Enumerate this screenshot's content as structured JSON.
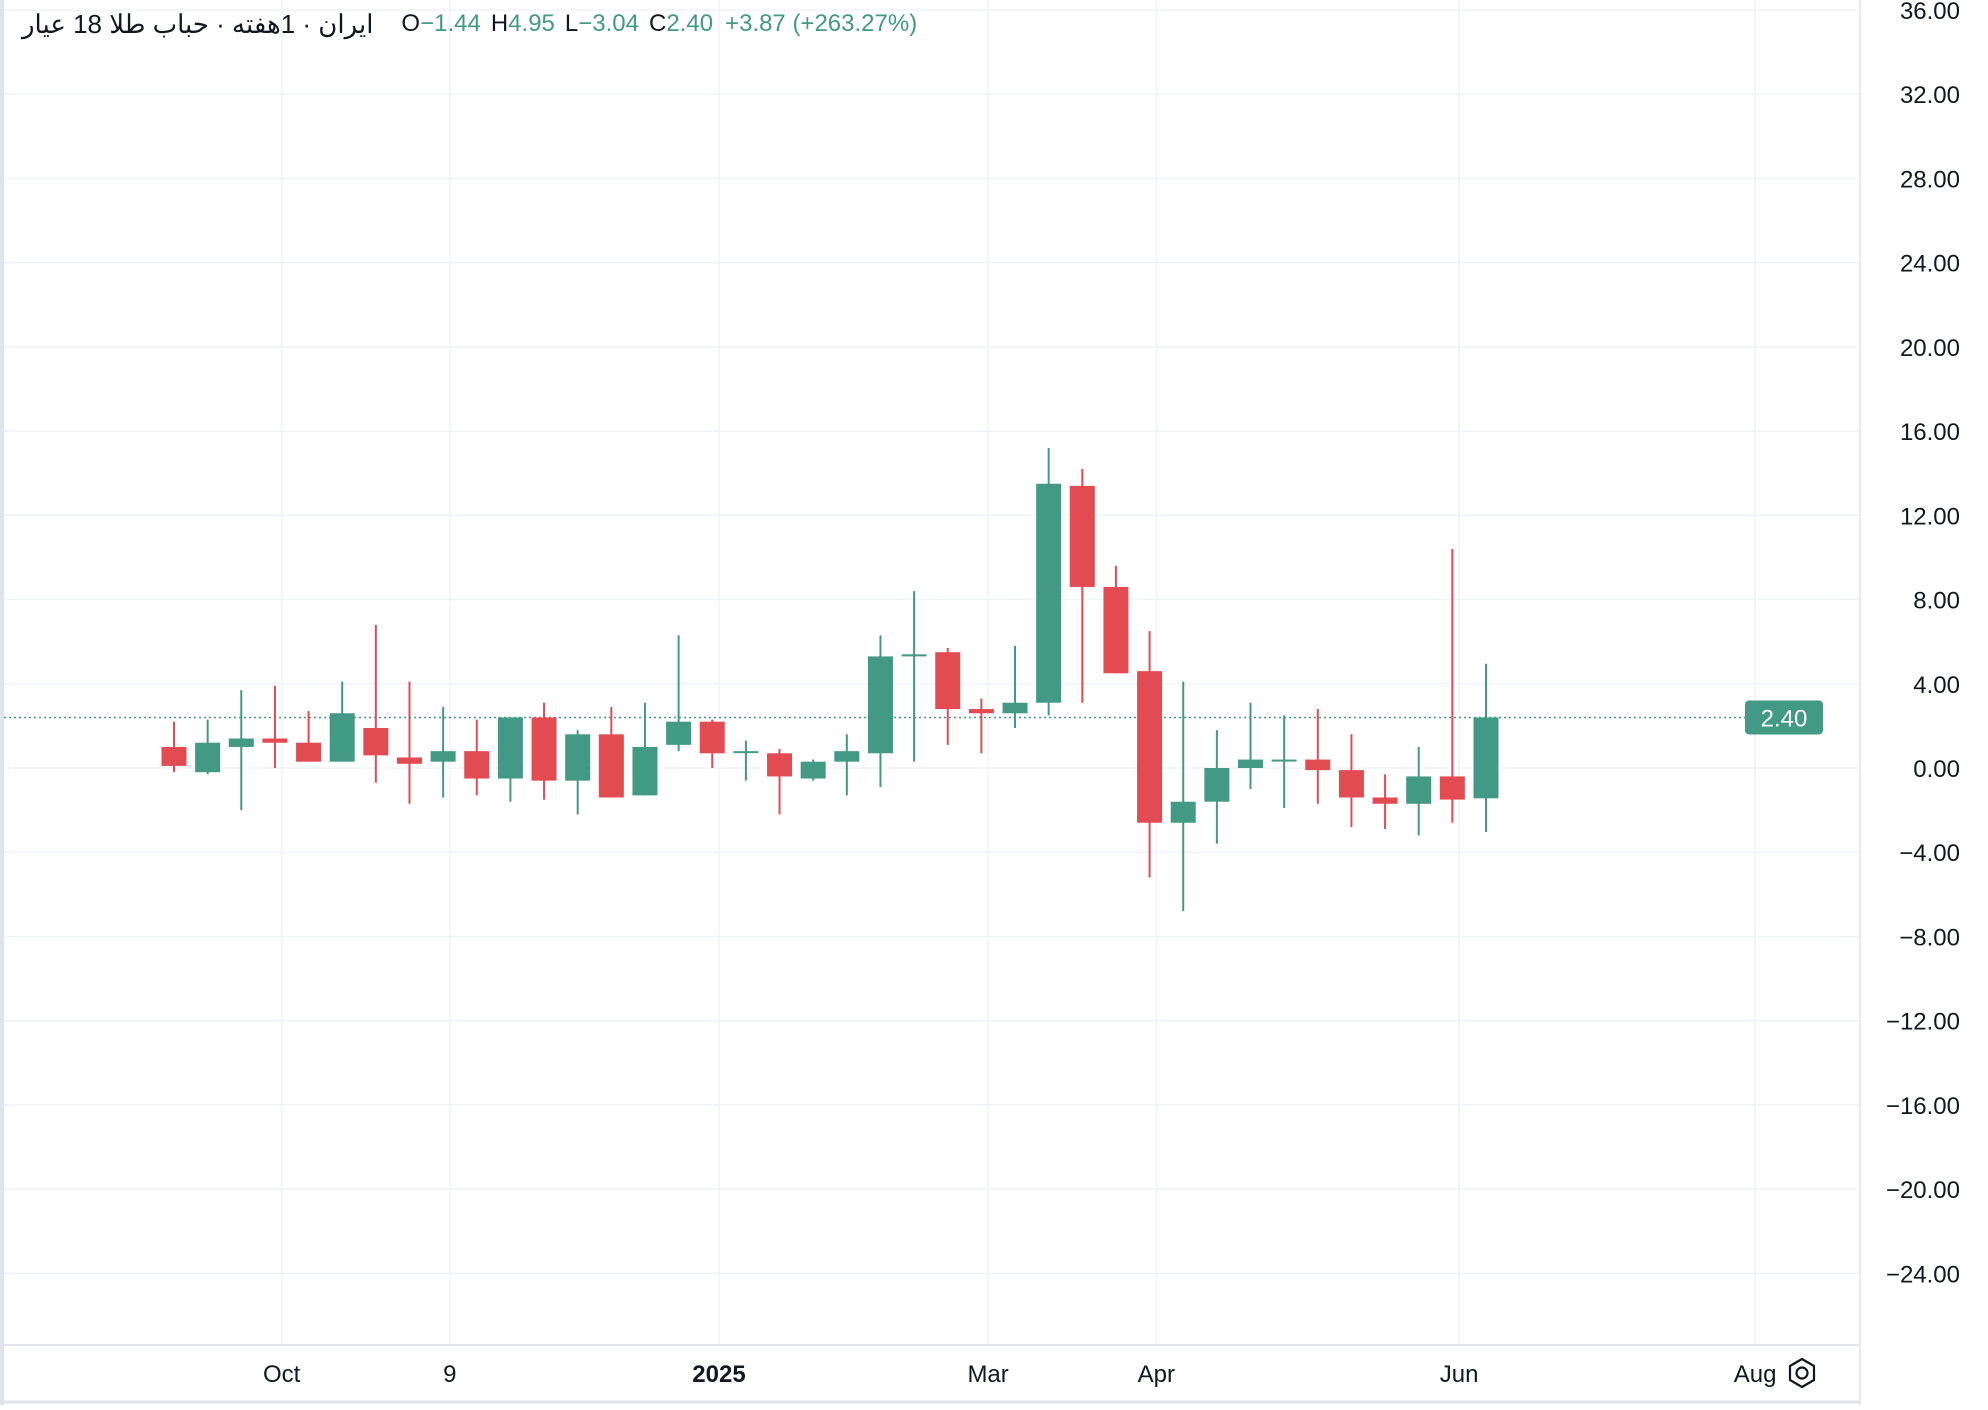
{
  "legend": {
    "title": "ایران · 1هفته · حباب طلا 18 عیار",
    "o_key": "O",
    "o_val": "−1.44",
    "h_key": "H",
    "h_val": "4.95",
    "l_key": "L",
    "l_val": "−3.04",
    "c_key": "C",
    "c_val": "2.40",
    "change": "+3.87 (+263.27%)"
  },
  "colors": {
    "up": "#429a84",
    "down": "#e14b51",
    "grid": "#f0f3fa",
    "axis_text": "#131722",
    "last_price_badge": "#429a84",
    "last_price_line": "#429a84"
  },
  "icons": {
    "settings": "gear-icon"
  },
  "chart_data": {
    "type": "candlestick",
    "title": "",
    "xlabel": "",
    "ylabel": "",
    "ylim": [
      -27.2,
      36.0
    ],
    "grid": true,
    "last_price": 2.4,
    "last_price_label": "2.40",
    "y_ticks": [
      36,
      32,
      28,
      24,
      20,
      16,
      12,
      8,
      4,
      0,
      -4,
      -8,
      -12,
      -16,
      -20,
      -24
    ],
    "y_tick_labels": [
      "36.00",
      "32.00",
      "28.00",
      "24.00",
      "20.00",
      "16.00",
      "12.00",
      "8.00",
      "4.00",
      "0.00",
      "−4.00",
      "−8.00",
      "−12.00",
      "−16.00",
      "−20.00",
      "−24.00"
    ],
    "x_labels": [
      {
        "label": "Oct",
        "index": 3.2,
        "bold": false
      },
      {
        "label": "9",
        "index": 8.2,
        "bold": false
      },
      {
        "label": "2025",
        "index": 16.2,
        "bold": true
      },
      {
        "label": "Mar",
        "index": 24.2,
        "bold": false
      },
      {
        "label": "Apr",
        "index": 29.2,
        "bold": false
      },
      {
        "label": "Jun",
        "index": 38.2,
        "bold": false
      },
      {
        "label": "Aug",
        "index": 47.0,
        "bold": false
      }
    ],
    "x_gridlines": [
      3.2,
      8.2,
      16.2,
      24.2,
      29.2,
      38.2,
      47.0
    ],
    "x_first": 0,
    "x_last": 39,
    "candles": [
      {
        "o": 1.0,
        "h": 2.2,
        "l": -0.2,
        "c": 0.1
      },
      {
        "o": -0.2,
        "h": 2.3,
        "l": -0.3,
        "c": 1.2
      },
      {
        "o": 1.0,
        "h": 3.7,
        "l": -2.0,
        "c": 1.4
      },
      {
        "o": 1.4,
        "h": 3.9,
        "l": 0.0,
        "c": 1.2
      },
      {
        "o": 1.2,
        "h": 2.7,
        "l": 0.3,
        "c": 0.3
      },
      {
        "o": 0.3,
        "h": 4.1,
        "l": 0.3,
        "c": 2.6
      },
      {
        "o": 1.9,
        "h": 6.8,
        "l": -0.7,
        "c": 0.6
      },
      {
        "o": 0.5,
        "h": 4.1,
        "l": -1.7,
        "c": 0.2
      },
      {
        "o": 0.3,
        "h": 2.9,
        "l": -1.4,
        "c": 0.8
      },
      {
        "o": 0.8,
        "h": 2.3,
        "l": -1.3,
        "c": -0.5
      },
      {
        "o": -0.5,
        "h": 2.4,
        "l": -1.6,
        "c": 2.4
      },
      {
        "o": 2.4,
        "h": 3.1,
        "l": -1.5,
        "c": -0.6
      },
      {
        "o": -0.6,
        "h": 1.8,
        "l": -2.2,
        "c": 1.6
      },
      {
        "o": 1.6,
        "h": 2.9,
        "l": -1.4,
        "c": -1.4
      },
      {
        "o": -1.3,
        "h": 3.1,
        "l": -1.3,
        "c": 1.0
      },
      {
        "o": 1.1,
        "h": 6.3,
        "l": 0.8,
        "c": 2.2
      },
      {
        "o": 2.2,
        "h": 2.3,
        "l": 0.0,
        "c": 0.7
      },
      {
        "o": 0.8,
        "h": 1.3,
        "l": -0.6,
        "c": 0.8
      },
      {
        "o": 0.7,
        "h": 0.9,
        "l": -2.2,
        "c": -0.4
      },
      {
        "o": -0.5,
        "h": 0.4,
        "l": -0.6,
        "c": 0.3
      },
      {
        "o": 0.3,
        "h": 1.6,
        "l": -1.3,
        "c": 0.8
      },
      {
        "o": 0.7,
        "h": 6.3,
        "l": -0.9,
        "c": 5.3
      },
      {
        "o": 5.3,
        "h": 8.4,
        "l": 0.3,
        "c": 5.4
      },
      {
        "o": 5.5,
        "h": 5.7,
        "l": 1.1,
        "c": 2.8
      },
      {
        "o": 2.8,
        "h": 3.3,
        "l": 0.7,
        "c": 2.6
      },
      {
        "o": 2.6,
        "h": 5.8,
        "l": 1.9,
        "c": 3.1
      },
      {
        "o": 3.1,
        "h": 15.2,
        "l": 2.5,
        "c": 13.5
      },
      {
        "o": 13.4,
        "h": 14.2,
        "l": 3.1,
        "c": 8.6
      },
      {
        "o": 8.6,
        "h": 9.6,
        "l": 4.5,
        "c": 4.5
      },
      {
        "o": 4.6,
        "h": 6.5,
        "l": -5.2,
        "c": -2.6
      },
      {
        "o": -2.6,
        "h": 4.1,
        "l": -6.8,
        "c": -1.6
      },
      {
        "o": -1.6,
        "h": 1.8,
        "l": -3.6,
        "c": 0.0
      },
      {
        "o": 0.0,
        "h": 3.1,
        "l": -1.0,
        "c": 0.4
      },
      {
        "o": 0.4,
        "h": 2.5,
        "l": -1.9,
        "c": 0.4
      },
      {
        "o": 0.4,
        "h": 2.8,
        "l": -1.7,
        "c": -0.1
      },
      {
        "o": -0.1,
        "h": 1.6,
        "l": -2.8,
        "c": -1.4
      },
      {
        "o": -1.4,
        "h": -0.3,
        "l": -2.9,
        "c": -1.7
      },
      {
        "o": -1.7,
        "h": 1.0,
        "l": -3.2,
        "c": -0.4
      },
      {
        "o": -0.4,
        "h": 10.4,
        "l": -2.6,
        "c": -1.5
      },
      {
        "o": -1.44,
        "h": 4.95,
        "l": -3.04,
        "c": 2.4
      }
    ]
  }
}
